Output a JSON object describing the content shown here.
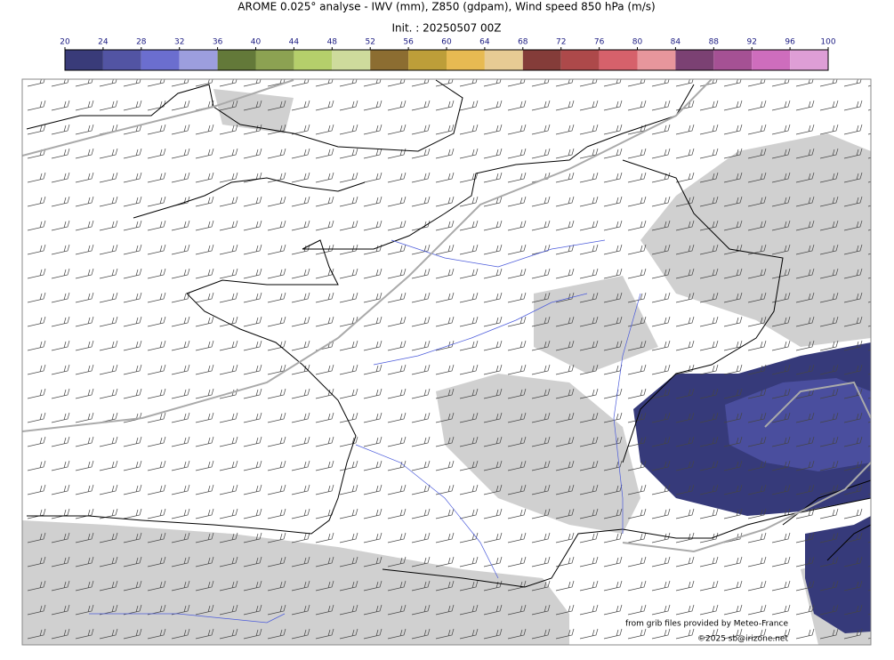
{
  "header": {
    "title": "AROME 0.025° analyse - IWV (mm), Z850 (gdpam), Wind speed 850 hPa (m/s)",
    "subtitle": "Init. : 20250507 00Z"
  },
  "colorbar": {
    "ticks": [
      20,
      24,
      28,
      32,
      36,
      40,
      44,
      48,
      52,
      56,
      60,
      64,
      68,
      72,
      76,
      80,
      84,
      88,
      92,
      96,
      100
    ],
    "colors": [
      "#393b79",
      "#5254a3",
      "#6b6ecf",
      "#9c9ede",
      "#637939",
      "#8ca252",
      "#b5cf6b",
      "#cedb9c",
      "#8c6d31",
      "#bd9e39",
      "#e7ba52",
      "#e7cb94",
      "#843c39",
      "#ad494a",
      "#d6616b",
      "#e7969c",
      "#7b4173",
      "#a55194",
      "#ce6dbd",
      "#de9ed6"
    ]
  },
  "credits": {
    "source": "from grib files provided by Meteo-France",
    "copyright": "©2025 sb@irizone.net"
  }
}
